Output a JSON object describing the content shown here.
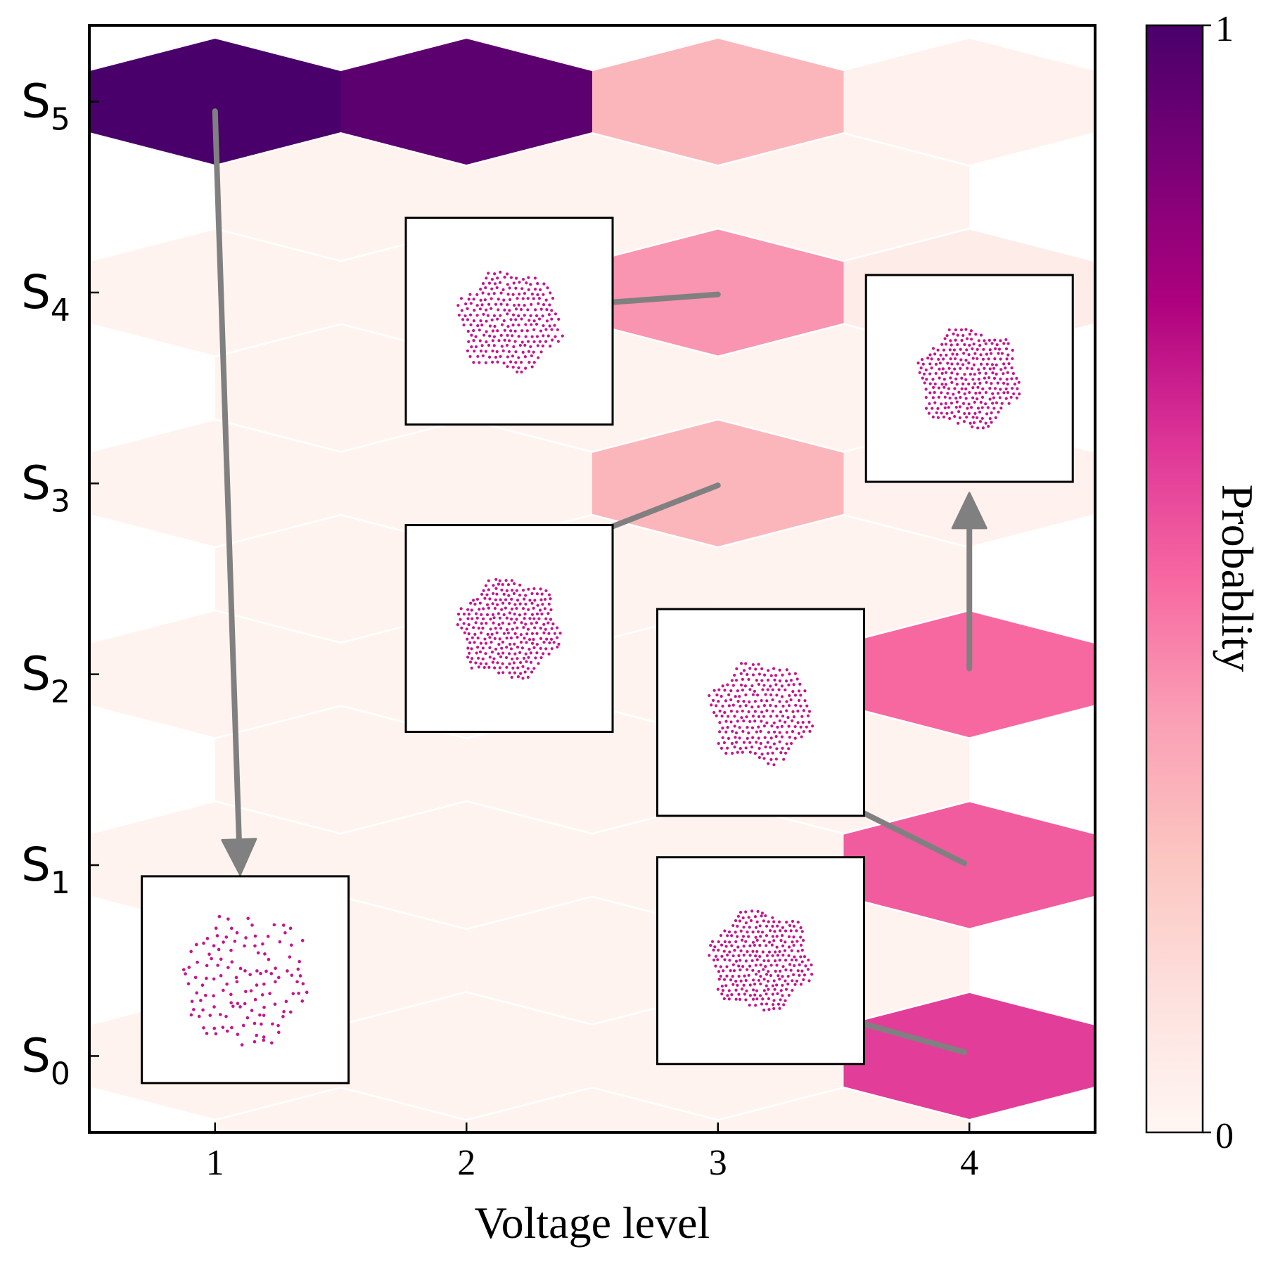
{
  "chart_data": {
    "type": "heatmap",
    "subtype": "hexbin",
    "title": "",
    "xlabel": "Voltage level",
    "ylabel": "",
    "x_ticks": [
      "1",
      "2",
      "3",
      "4"
    ],
    "xlim": [
      0.5,
      4.5
    ],
    "y_ticks": [
      {
        "main": "S",
        "sub": "0"
      },
      {
        "main": "S",
        "sub": "1"
      },
      {
        "main": "S",
        "sub": "2"
      },
      {
        "main": "S",
        "sub": "3"
      },
      {
        "main": "S",
        "sub": "4"
      },
      {
        "main": "S",
        "sub": "5"
      }
    ],
    "ylim": [
      -0.4,
      5.4
    ],
    "grid": false,
    "cells": [
      {
        "x": 1,
        "y": 5,
        "p": 1.0
      },
      {
        "x": 2,
        "y": 5,
        "p": 0.95
      },
      {
        "x": 3,
        "y": 5,
        "p": 0.3
      },
      {
        "x": 4,
        "y": 5,
        "p": 0.03
      },
      {
        "x": 3,
        "y": 4,
        "p": 0.4
      },
      {
        "x": 3,
        "y": 3,
        "p": 0.3
      },
      {
        "x": 4,
        "y": 4,
        "p": 0.06
      },
      {
        "x": 4,
        "y": 3,
        "p": 0.03
      },
      {
        "x": 4,
        "y": 2,
        "p": 0.5
      },
      {
        "x": 4,
        "y": 1,
        "p": 0.53
      },
      {
        "x": 4,
        "y": 0,
        "p": 0.6
      },
      {
        "x": 1,
        "y": 4,
        "p": 0.02
      },
      {
        "x": 1,
        "y": 3,
        "p": 0.02
      },
      {
        "x": 1,
        "y": 2,
        "p": 0.02
      },
      {
        "x": 1,
        "y": 1,
        "p": 0.02
      },
      {
        "x": 1,
        "y": 0,
        "p": 0.02
      },
      {
        "x": 2,
        "y": 4,
        "p": 0.02
      },
      {
        "x": 2,
        "y": 3,
        "p": 0.02
      },
      {
        "x": 2,
        "y": 2,
        "p": 0.02
      },
      {
        "x": 2,
        "y": 1,
        "p": 0.02
      },
      {
        "x": 2,
        "y": 0,
        "p": 0.02
      },
      {
        "x": 3,
        "y": 2,
        "p": 0.02
      },
      {
        "x": 3,
        "y": 1,
        "p": 0.02
      },
      {
        "x": 3,
        "y": 0,
        "p": 0.02
      },
      {
        "x": 1.5,
        "y": 4.5,
        "p": 0.02
      },
      {
        "x": 2.5,
        "y": 4.5,
        "p": 0.02
      },
      {
        "x": 3.5,
        "y": 4.5,
        "p": 0.02
      },
      {
        "x": 1.5,
        "y": 3.5,
        "p": 0.02
      },
      {
        "x": 2.5,
        "y": 3.5,
        "p": 0.02
      },
      {
        "x": 3.5,
        "y": 3.5,
        "p": 0.02
      },
      {
        "x": 1.5,
        "y": 2.5,
        "p": 0.02
      },
      {
        "x": 2.5,
        "y": 2.5,
        "p": 0.02
      },
      {
        "x": 3.5,
        "y": 2.5,
        "p": 0.02
      },
      {
        "x": 1.5,
        "y": 1.5,
        "p": 0.02
      },
      {
        "x": 2.5,
        "y": 1.5,
        "p": 0.02
      },
      {
        "x": 3.5,
        "y": 1.5,
        "p": 0.02
      },
      {
        "x": 1.5,
        "y": 0.5,
        "p": 0.02
      },
      {
        "x": 2.5,
        "y": 0.5,
        "p": 0.02
      },
      {
        "x": 3.5,
        "y": 0.5,
        "p": 0.02
      },
      {
        "x": 1.5,
        "y": -0.5,
        "p": 0.02
      },
      {
        "x": 2.5,
        "y": -0.5,
        "p": 0.02
      },
      {
        "x": 3.5,
        "y": -0.5,
        "p": 0.02
      }
    ],
    "transitions": [
      {
        "from": [
          1,
          4.95
        ],
        "to": [
          1.1,
          0.95
        ]
      },
      {
        "from": [
          3,
          3.99
        ],
        "to": [
          2.28,
          3.92
        ]
      },
      {
        "from": [
          3,
          2.99
        ],
        "to": [
          2.28,
          2.62
        ]
      },
      {
        "from": [
          3.98,
          1.01
        ],
        "to": [
          3.28,
          1.47
        ]
      },
      {
        "from": [
          3.98,
          0.02
        ],
        "to": [
          3.28,
          0.28
        ]
      },
      {
        "from": [
          4,
          2.03
        ],
        "to": [
          4,
          2.95
        ]
      }
    ],
    "insets": [
      {
        "name": "S0-structure",
        "center": [
          1.12,
          0.4
        ],
        "density": "sparse"
      },
      {
        "name": "S1-structure",
        "center": [
          3.17,
          0.5
        ],
        "density": "dense"
      },
      {
        "name": "S2-structure",
        "center": [
          3.17,
          1.8
        ],
        "density": "medium"
      },
      {
        "name": "S3-structure",
        "center": [
          2.17,
          2.24
        ],
        "density": "dense"
      },
      {
        "name": "S4-structure",
        "center": [
          2.17,
          3.85
        ],
        "density": "medium"
      },
      {
        "name": "S4-4-structure",
        "center": [
          4.0,
          3.55
        ],
        "density": "dense"
      }
    ],
    "colorbar": {
      "label": "Probablity",
      "min_label": "0",
      "max_label": "1",
      "colormap": [
        "#fff7f3",
        "#fde0dd",
        "#fcc5c0",
        "#fa9fb5",
        "#f768a1",
        "#dd3497",
        "#ae017e",
        "#7a0177",
        "#49006a"
      ]
    },
    "colors": {
      "arrow": "#808080",
      "particle": "#c5158f",
      "frame": "#000000"
    }
  }
}
